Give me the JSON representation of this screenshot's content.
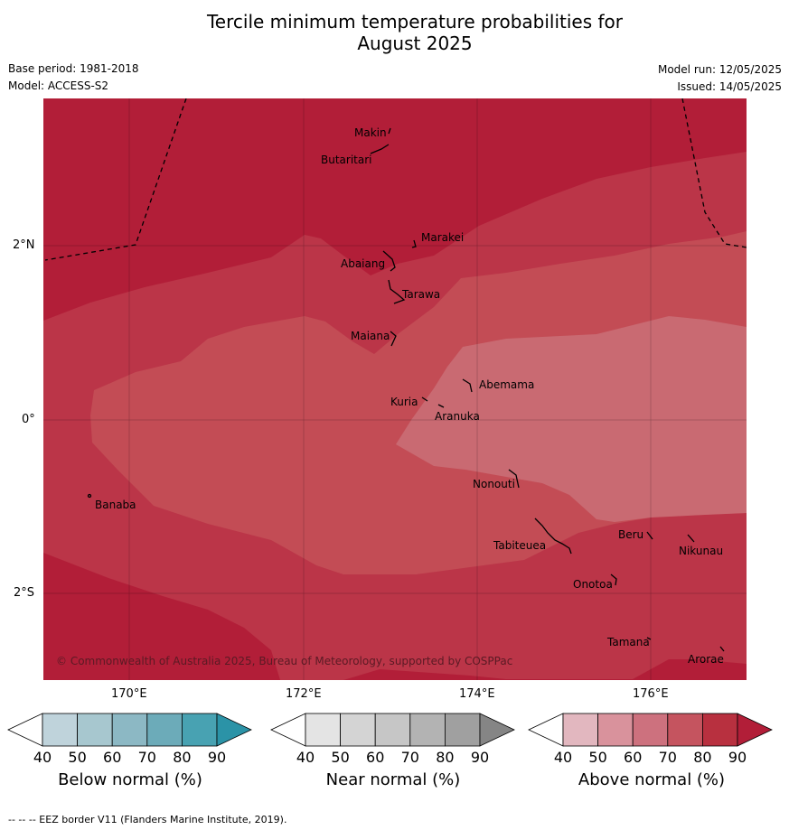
{
  "title_line1": "Tercile minimum temperature probabilities for",
  "title_line2": "August 2025",
  "base_period": "Base period: 1981-2018",
  "model": "Model: ACCESS-S2",
  "model_run": "Model run: 12/05/2025",
  "issued": "Issued: 14/05/2025",
  "copyright": "© Commonwealth of Australia 2025, Bureau of Meteorology, supported by COSPPac",
  "footer": "--  --  -- EEZ border V11 (Flanders Marine Institute, 2019).",
  "lat_ticks": [
    "2°N",
    "0°",
    "2°S"
  ],
  "lon_ticks": [
    "170°E",
    "172°E",
    "174°E",
    "176°E"
  ],
  "places": [
    "Makin",
    "Butaritari",
    "Marakei",
    "Abaiang",
    "Tarawa",
    "Maiana",
    "Abemama",
    "Kuria",
    "Aranuka",
    "Nonouti",
    "Banaba",
    "Beru",
    "Nikunau",
    "Tabiteuea",
    "Onotoa",
    "Tamana",
    "Arorae"
  ],
  "colorbars": [
    {
      "title": "Below normal (%)",
      "ticks": [
        "40",
        "50",
        "60",
        "70",
        "80",
        "90"
      ],
      "colors": [
        "#bfd3db",
        "#a7c7cf",
        "#8cb8c4",
        "#6cabb9",
        "#48a2b2",
        "#2b93a7"
      ]
    },
    {
      "title": "Near normal (%)",
      "ticks": [
        "40",
        "50",
        "60",
        "70",
        "80",
        "90"
      ],
      "colors": [
        "#e4e4e4",
        "#d4d4d4",
        "#c6c6c6",
        "#b3b3b3",
        "#a0a0a0",
        "#858585"
      ]
    },
    {
      "title": "Above normal (%)",
      "ticks": [
        "40",
        "50",
        "60",
        "70",
        "80",
        "90"
      ],
      "colors": [
        "#e2b7bf",
        "#d9929c",
        "#cd717e",
        "#c5545f",
        "#b8303f",
        "#b21e38"
      ]
    }
  ],
  "map_colors": {
    "p90": "#b21e38",
    "p80": "#bb3548",
    "p70": "#c34c55",
    "p60": "#c96a72"
  }
}
